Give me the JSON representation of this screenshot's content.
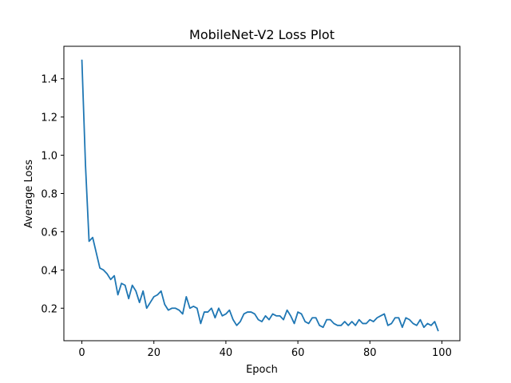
{
  "chart_data": {
    "type": "line",
    "title": "MobileNet-V2 Loss Plot",
    "xlabel": "Epoch",
    "ylabel": "Average Loss",
    "xlim": [
      -5,
      105
    ],
    "ylim": [
      0.03,
      1.57
    ],
    "xticks": [
      0,
      20,
      40,
      60,
      80,
      100
    ],
    "xtick_labels": [
      "0",
      "20",
      "40",
      "60",
      "80",
      "100"
    ],
    "yticks": [
      0.2,
      0.4,
      0.6,
      0.8,
      1.0,
      1.2,
      1.4
    ],
    "ytick_labels": [
      "0.2",
      "0.4",
      "0.6",
      "0.8",
      "1.0",
      "1.2",
      "1.4"
    ],
    "grid": false,
    "line_color": "#1f77b4",
    "series": [
      {
        "x": [
          0,
          1,
          2,
          3,
          4,
          5,
          6,
          7,
          8,
          9,
          10,
          11,
          12,
          13,
          14,
          15,
          16,
          17,
          18,
          19,
          20,
          21,
          22,
          23,
          24,
          25,
          26,
          27,
          28,
          29,
          30,
          31,
          32,
          33,
          34,
          35,
          36,
          37,
          38,
          39,
          40,
          41,
          42,
          43,
          44,
          45,
          46,
          47,
          48,
          49,
          50,
          51,
          52,
          53,
          54,
          55,
          56,
          57,
          58,
          59,
          60,
          61,
          62,
          63,
          64,
          65,
          66,
          67,
          68,
          69,
          70,
          71,
          72,
          73,
          74,
          75,
          76,
          77,
          78,
          79,
          80,
          81,
          82,
          83,
          84,
          85,
          86,
          87,
          88,
          89,
          90,
          91,
          92,
          93,
          94,
          95,
          96,
          97,
          98,
          99
        ],
        "values": [
          1.5,
          0.95,
          0.55,
          0.57,
          0.49,
          0.41,
          0.4,
          0.38,
          0.35,
          0.37,
          0.27,
          0.33,
          0.32,
          0.25,
          0.32,
          0.29,
          0.23,
          0.29,
          0.2,
          0.23,
          0.26,
          0.27,
          0.29,
          0.22,
          0.19,
          0.2,
          0.2,
          0.19,
          0.17,
          0.26,
          0.2,
          0.21,
          0.2,
          0.12,
          0.18,
          0.18,
          0.2,
          0.15,
          0.2,
          0.16,
          0.17,
          0.19,
          0.14,
          0.11,
          0.13,
          0.17,
          0.18,
          0.18,
          0.17,
          0.14,
          0.13,
          0.16,
          0.14,
          0.17,
          0.16,
          0.16,
          0.14,
          0.19,
          0.16,
          0.12,
          0.18,
          0.17,
          0.13,
          0.12,
          0.15,
          0.15,
          0.11,
          0.1,
          0.14,
          0.14,
          0.12,
          0.11,
          0.11,
          0.13,
          0.11,
          0.13,
          0.11,
          0.14,
          0.12,
          0.12,
          0.14,
          0.13,
          0.15,
          0.16,
          0.17,
          0.11,
          0.12,
          0.15,
          0.15,
          0.1,
          0.15,
          0.14,
          0.12,
          0.11,
          0.14,
          0.1,
          0.12,
          0.11,
          0.13,
          0.08
        ]
      }
    ]
  }
}
